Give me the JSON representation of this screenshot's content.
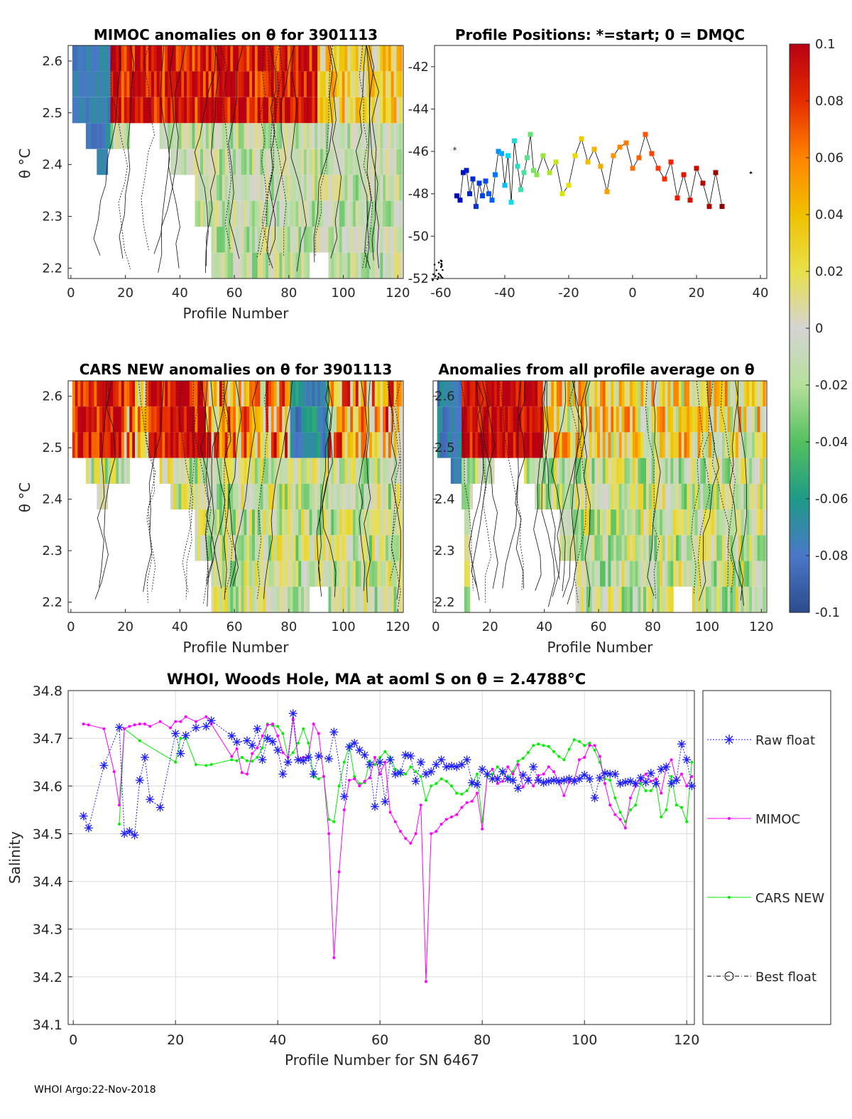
{
  "footer": "WHOI Argo:22-Nov-2018",
  "colors": {
    "raw": "#1c1cff",
    "mimoc": "#ff00ff",
    "cars": "#00ee00",
    "best": "#000000",
    "grid": "#dcdcdc",
    "axis": "#262626"
  },
  "chart_data": [
    {
      "id": "mimoc",
      "type": "heatmap",
      "title": "MIMOC anomalies on θ  for 3901113",
      "xlabel": "Profile Number",
      "ylabel": "θ °C",
      "xlim": [
        -1,
        122
      ],
      "ylim": [
        2.18,
        2.63
      ],
      "xticks": [
        0,
        20,
        40,
        60,
        80,
        100,
        120
      ],
      "yticks": [
        2.2,
        2.3,
        2.4,
        2.5,
        2.6
      ],
      "ytick_labels": [
        "2.2",
        "2.3",
        "2.4",
        "2.5",
        "2.6"
      ]
    },
    {
      "id": "positions",
      "type": "scatter",
      "title": "Profile Positions: *=start; 0 = DMQC",
      "xlim": [
        -62,
        42
      ],
      "ylim": [
        -52,
        -41
      ],
      "xticks": [
        -60,
        -40,
        -20,
        0,
        20,
        40
      ],
      "yticks": [
        -52,
        -50,
        -48,
        -46,
        -44,
        -42
      ],
      "lon": [
        -55,
        -54,
        -53,
        -52,
        -51,
        -50,
        -49,
        -48,
        -47,
        -46,
        -45,
        -44,
        -43,
        -42,
        -41,
        -40,
        -39,
        -38,
        -37,
        -36,
        -35,
        -34,
        -33,
        -32,
        -31,
        -30,
        -28,
        -26,
        -24,
        -22,
        -20,
        -18,
        -16,
        -14,
        -12,
        -10,
        -8,
        -6,
        -4,
        -2,
        0,
        2,
        4,
        6,
        8,
        10,
        12,
        14,
        16,
        18,
        20,
        22,
        24,
        26,
        28
      ],
      "lat": [
        -48.1,
        -48.3,
        -47.0,
        -46.9,
        -48.0,
        -47.3,
        -48.6,
        -47.5,
        -48.1,
        -47.4,
        -48.0,
        -48.3,
        -47.1,
        -46.0,
        -46.1,
        -47.6,
        -46.2,
        -48.4,
        -45.5,
        -46.7,
        -47.8,
        -47.0,
        -46.3,
        -45.2,
        -46.9,
        -47.1,
        -46.2,
        -47.0,
        -46.5,
        -48.0,
        -47.6,
        -46.2,
        -45.4,
        -46.5,
        -45.9,
        -46.7,
        -47.9,
        -46.2,
        -45.8,
        -45.6,
        -46.8,
        -46.3,
        -45.2,
        -46.1,
        -46.8,
        -47.3,
        -46.5,
        -48.2,
        -47.1,
        -48.3,
        -46.8,
        -47.5,
        -48.6,
        -47.0,
        -48.6
      ],
      "cluster_west": [
        -61,
        -51.6
      ],
      "cluster_east": [
        37,
        -47
      ]
    },
    {
      "id": "colorbar",
      "type": "heatmap",
      "clim": [
        -0.1,
        0.1
      ],
      "ticks": [
        "0.1",
        "0.08",
        "0.06",
        "0.04",
        "0.02",
        "0",
        "-0.02",
        "-0.04",
        "-0.06",
        "-0.08",
        "-0.1"
      ],
      "tick_values": [
        0.1,
        0.08,
        0.06,
        0.04,
        0.02,
        0,
        -0.02,
        -0.04,
        -0.06,
        -0.08,
        -0.1
      ]
    },
    {
      "id": "cars",
      "type": "heatmap",
      "title": "CARS NEW anomalies on θ for 3901113",
      "xlabel": "Profile Number",
      "ylabel": "θ °C",
      "xlim": [
        -1,
        122
      ],
      "ylim": [
        2.18,
        2.63
      ],
      "xticks": [
        0,
        20,
        40,
        60,
        80,
        100,
        120
      ],
      "yticks": [
        2.2,
        2.3,
        2.4,
        2.5,
        2.6
      ],
      "ytick_labels": [
        "2.2",
        "2.3",
        "2.4",
        "2.5",
        "2.6"
      ]
    },
    {
      "id": "avg",
      "type": "heatmap",
      "title": "Anomalies from all profile average on θ",
      "xlabel": "Profile Number",
      "xlim": [
        -1,
        122
      ],
      "ylim": [
        2.18,
        2.63
      ],
      "xticks": [
        0,
        20,
        40,
        60,
        80,
        100,
        120
      ],
      "yticks": [
        2.2,
        2.3,
        2.4,
        2.5,
        2.6
      ],
      "ytick_labels": [
        "2.2",
        "2.3",
        "2.4",
        "2.5",
        "2.6"
      ]
    },
    {
      "id": "salinity",
      "type": "line",
      "title_main": "WHOI, Woods Hole, MA at aoml S on θ = 2.4788",
      "title_suffix": "°C",
      "xlabel": "Profile Number for SN 6467",
      "ylabel": "Salinity",
      "xlim": [
        -1,
        121.5
      ],
      "ylim": [
        34.1,
        34.8
      ],
      "xticks": [
        0,
        20,
        40,
        60,
        80,
        100,
        120
      ],
      "yticks": [
        34.1,
        34.2,
        34.3,
        34.4,
        34.5,
        34.6,
        34.7,
        34.8
      ],
      "ytick_labels": [
        "34.1",
        "34.2",
        "34.3",
        "34.4",
        "34.5",
        "34.6",
        "34.7",
        "34.8"
      ],
      "legend": [
        "Raw float",
        "MIMOC",
        "CARS NEW",
        "Best float"
      ],
      "series": [
        {
          "name": "Raw float",
          "x": [
            2,
            3,
            6,
            9,
            10,
            11,
            12,
            13,
            14,
            15,
            17,
            20,
            21,
            22,
            24,
            26,
            27,
            31,
            32,
            34,
            35,
            36,
            37,
            38,
            39,
            40,
            41,
            42,
            43,
            44,
            45,
            46,
            47,
            48,
            50,
            51,
            53,
            54,
            55,
            56,
            57,
            58,
            59,
            60,
            61,
            62,
            63,
            64,
            65,
            66,
            67,
            68,
            69,
            70,
            71,
            72,
            73,
            74,
            75,
            76,
            77,
            78,
            79,
            80,
            81,
            82,
            83,
            84,
            85,
            86,
            87,
            88,
            89,
            90,
            91,
            92,
            93,
            94,
            95,
            96,
            97,
            98,
            99,
            100,
            101,
            102,
            103,
            104,
            105,
            106,
            107,
            108,
            109,
            110,
            111,
            112,
            113,
            114,
            115,
            116,
            117,
            118,
            119,
            120,
            121
          ],
          "y": [
            34.537,
            34.512,
            34.643,
            34.723,
            34.5,
            34.505,
            34.497,
            34.612,
            34.66,
            34.572,
            34.555,
            34.71,
            34.668,
            34.706,
            34.722,
            34.725,
            34.737,
            34.705,
            34.692,
            34.695,
            34.685,
            34.72,
            34.655,
            34.7,
            34.693,
            34.675,
            34.625,
            34.65,
            34.752,
            34.655,
            34.653,
            34.66,
            34.625,
            34.663,
            34.657,
            34.713,
            34.578,
            34.682,
            34.69,
            34.675,
            34.665,
            34.645,
            34.557,
            34.65,
            34.567,
            34.655,
            34.625,
            34.628,
            34.665,
            34.663,
            34.61,
            34.65,
            34.625,
            34.63,
            34.645,
            34.655,
            34.64,
            34.642,
            34.64,
            34.645,
            34.655,
            34.607,
            34.603,
            34.635,
            34.625,
            34.615,
            34.615,
            34.63,
            34.615,
            34.612,
            34.595,
            34.623,
            34.612,
            34.64,
            34.612,
            34.607,
            34.61,
            34.612,
            34.61,
            34.612,
            34.615,
            34.61,
            34.615,
            34.623,
            34.615,
            34.575,
            34.617,
            34.627,
            34.625,
            34.625,
            34.605,
            34.608,
            34.61,
            34.605,
            34.617,
            34.608,
            34.627,
            34.605,
            34.635,
            34.64,
            34.605,
            34.612,
            34.688,
            34.655,
            34.6
          ]
        },
        {
          "name": "MIMOC",
          "x": [
            2,
            3,
            6,
            8,
            9,
            10,
            11,
            12,
            13,
            14,
            15,
            17,
            19,
            20,
            21,
            22,
            24,
            26,
            27,
            31,
            32,
            33,
            34,
            35,
            36,
            37,
            38,
            39,
            40,
            41,
            42,
            43,
            44,
            45,
            46,
            47,
            48,
            49,
            50,
            51,
            52,
            53,
            54,
            55,
            56,
            57,
            58,
            59,
            60,
            61,
            62,
            63,
            64,
            65,
            66,
            67,
            68,
            69,
            70,
            71,
            72,
            73,
            74,
            75,
            76,
            77,
            78,
            79,
            80,
            81,
            82,
            83,
            84,
            85,
            86,
            87,
            88,
            89,
            90,
            91,
            92,
            93,
            94,
            95,
            96,
            97,
            98,
            99,
            100,
            101,
            102,
            103,
            104,
            105,
            106,
            107,
            108,
            109,
            110,
            111,
            112,
            113,
            114,
            115,
            116,
            117,
            118,
            119,
            120,
            121
          ],
          "y": [
            34.73,
            34.728,
            34.72,
            34.63,
            34.56,
            34.72,
            34.725,
            34.728,
            34.73,
            34.73,
            34.725,
            34.735,
            34.722,
            34.735,
            34.735,
            34.745,
            34.735,
            34.745,
            34.73,
            34.662,
            34.678,
            34.628,
            34.625,
            34.668,
            34.68,
            34.705,
            34.728,
            34.73,
            34.705,
            34.67,
            34.66,
            34.74,
            34.655,
            34.66,
            34.662,
            34.73,
            34.71,
            34.62,
            34.5,
            34.24,
            34.42,
            34.55,
            34.612,
            34.615,
            34.6,
            34.61,
            34.617,
            34.66,
            34.625,
            34.65,
            34.545,
            34.525,
            34.505,
            34.49,
            34.48,
            34.5,
            34.56,
            34.19,
            34.5,
            34.505,
            34.52,
            34.53,
            34.535,
            34.54,
            34.555,
            34.565,
            34.568,
            34.585,
            34.51,
            34.625,
            34.635,
            34.605,
            34.61,
            34.64,
            34.625,
            34.645,
            34.598,
            34.615,
            34.6,
            34.622,
            34.625,
            34.64,
            34.63,
            34.608,
            34.58,
            34.608,
            34.612,
            34.655,
            34.66,
            34.685,
            34.685,
            34.662,
            34.605,
            34.56,
            34.54,
            34.53,
            34.512,
            34.575,
            34.6,
            34.612,
            34.625,
            34.61,
            34.615,
            34.585,
            34.64,
            34.655,
            34.612,
            34.625,
            34.6,
            34.62
          ]
        },
        {
          "name": "CARS NEW",
          "x": [
            9,
            10,
            13,
            20,
            21,
            22,
            24,
            26,
            27,
            31,
            32,
            33,
            34,
            35,
            36,
            37,
            38,
            39,
            40,
            41,
            42,
            43,
            44,
            45,
            46,
            47,
            48,
            49,
            50,
            51,
            52,
            53,
            54,
            55,
            56,
            57,
            58,
            59,
            60,
            61,
            62,
            63,
            64,
            65,
            66,
            67,
            68,
            69,
            70,
            71,
            72,
            73,
            74,
            75,
            76,
            77,
            78,
            79,
            80,
            81,
            82,
            83,
            84,
            85,
            86,
            87,
            88,
            89,
            90,
            91,
            92,
            93,
            94,
            95,
            96,
            97,
            98,
            99,
            100,
            101,
            102,
            103,
            104,
            105,
            106,
            107,
            108,
            109,
            110,
            111,
            112,
            113,
            114,
            115,
            116,
            117,
            118,
            119,
            120,
            121
          ],
          "y": [
            34.52,
            34.72,
            34.695,
            34.65,
            34.7,
            34.7,
            34.645,
            34.643,
            34.645,
            34.655,
            34.653,
            34.66,
            34.653,
            34.652,
            34.66,
            34.68,
            34.73,
            34.727,
            34.725,
            34.71,
            34.66,
            34.67,
            34.69,
            34.72,
            34.69,
            34.62,
            34.615,
            34.62,
            34.53,
            34.525,
            34.6,
            34.65,
            34.685,
            34.62,
            34.605,
            34.607,
            34.652,
            34.645,
            34.66,
            34.672,
            34.66,
            34.635,
            34.625,
            34.625,
            34.64,
            34.63,
            34.62,
            34.57,
            34.6,
            34.605,
            34.615,
            34.61,
            34.6,
            34.585,
            34.583,
            34.59,
            34.605,
            34.625,
            34.525,
            34.62,
            34.625,
            34.64,
            34.627,
            34.618,
            34.63,
            34.652,
            34.658,
            34.67,
            34.685,
            34.688,
            34.685,
            34.683,
            34.672,
            34.662,
            34.655,
            34.677,
            34.697,
            34.693,
            34.685,
            34.69,
            34.675,
            34.65,
            34.615,
            34.612,
            34.575,
            34.545,
            34.525,
            34.55,
            34.56,
            34.605,
            34.59,
            34.59,
            34.605,
            34.535,
            34.55,
            34.62,
            34.56,
            34.555,
            34.525,
            34.65
          ]
        }
      ]
    }
  ]
}
